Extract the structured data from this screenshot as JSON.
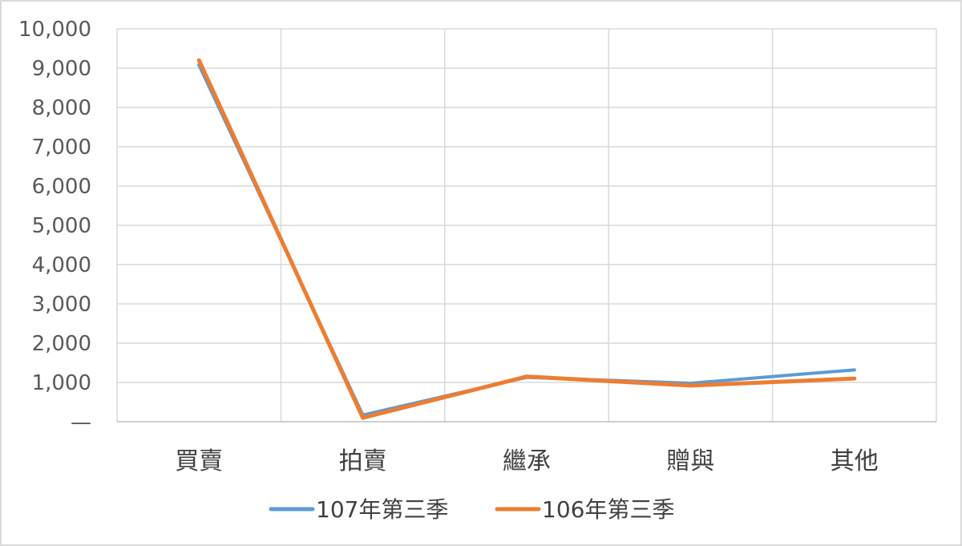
{
  "chart_data": {
    "type": "line",
    "categories": [
      "買賣",
      "拍賣",
      "繼承",
      "贈與",
      "其他"
    ],
    "series": [
      {
        "name": "107年第三季",
        "color": "#5b9bd5",
        "values": [
          9080,
          170,
          1130,
          980,
          1320
        ]
      },
      {
        "name": "106年第三季",
        "color": "#ed7d31",
        "values": [
          9200,
          100,
          1150,
          920,
          1100
        ]
      }
    ],
    "ylim": [
      0,
      10000
    ],
    "yticks": [
      {
        "value": 0,
        "label": "—"
      },
      {
        "value": 1000,
        "label": "1,000"
      },
      {
        "value": 2000,
        "label": "2,000"
      },
      {
        "value": 3000,
        "label": "3,000"
      },
      {
        "value": 4000,
        "label": "4,000"
      },
      {
        "value": 5000,
        "label": "5,000"
      },
      {
        "value": 6000,
        "label": "6,000"
      },
      {
        "value": 7000,
        "label": "7,000"
      },
      {
        "value": 8000,
        "label": "8,000"
      },
      {
        "value": 9000,
        "label": "9,000"
      },
      {
        "value": 10000,
        "label": "10,000"
      }
    ],
    "grid": true,
    "legend": "bottom"
  }
}
